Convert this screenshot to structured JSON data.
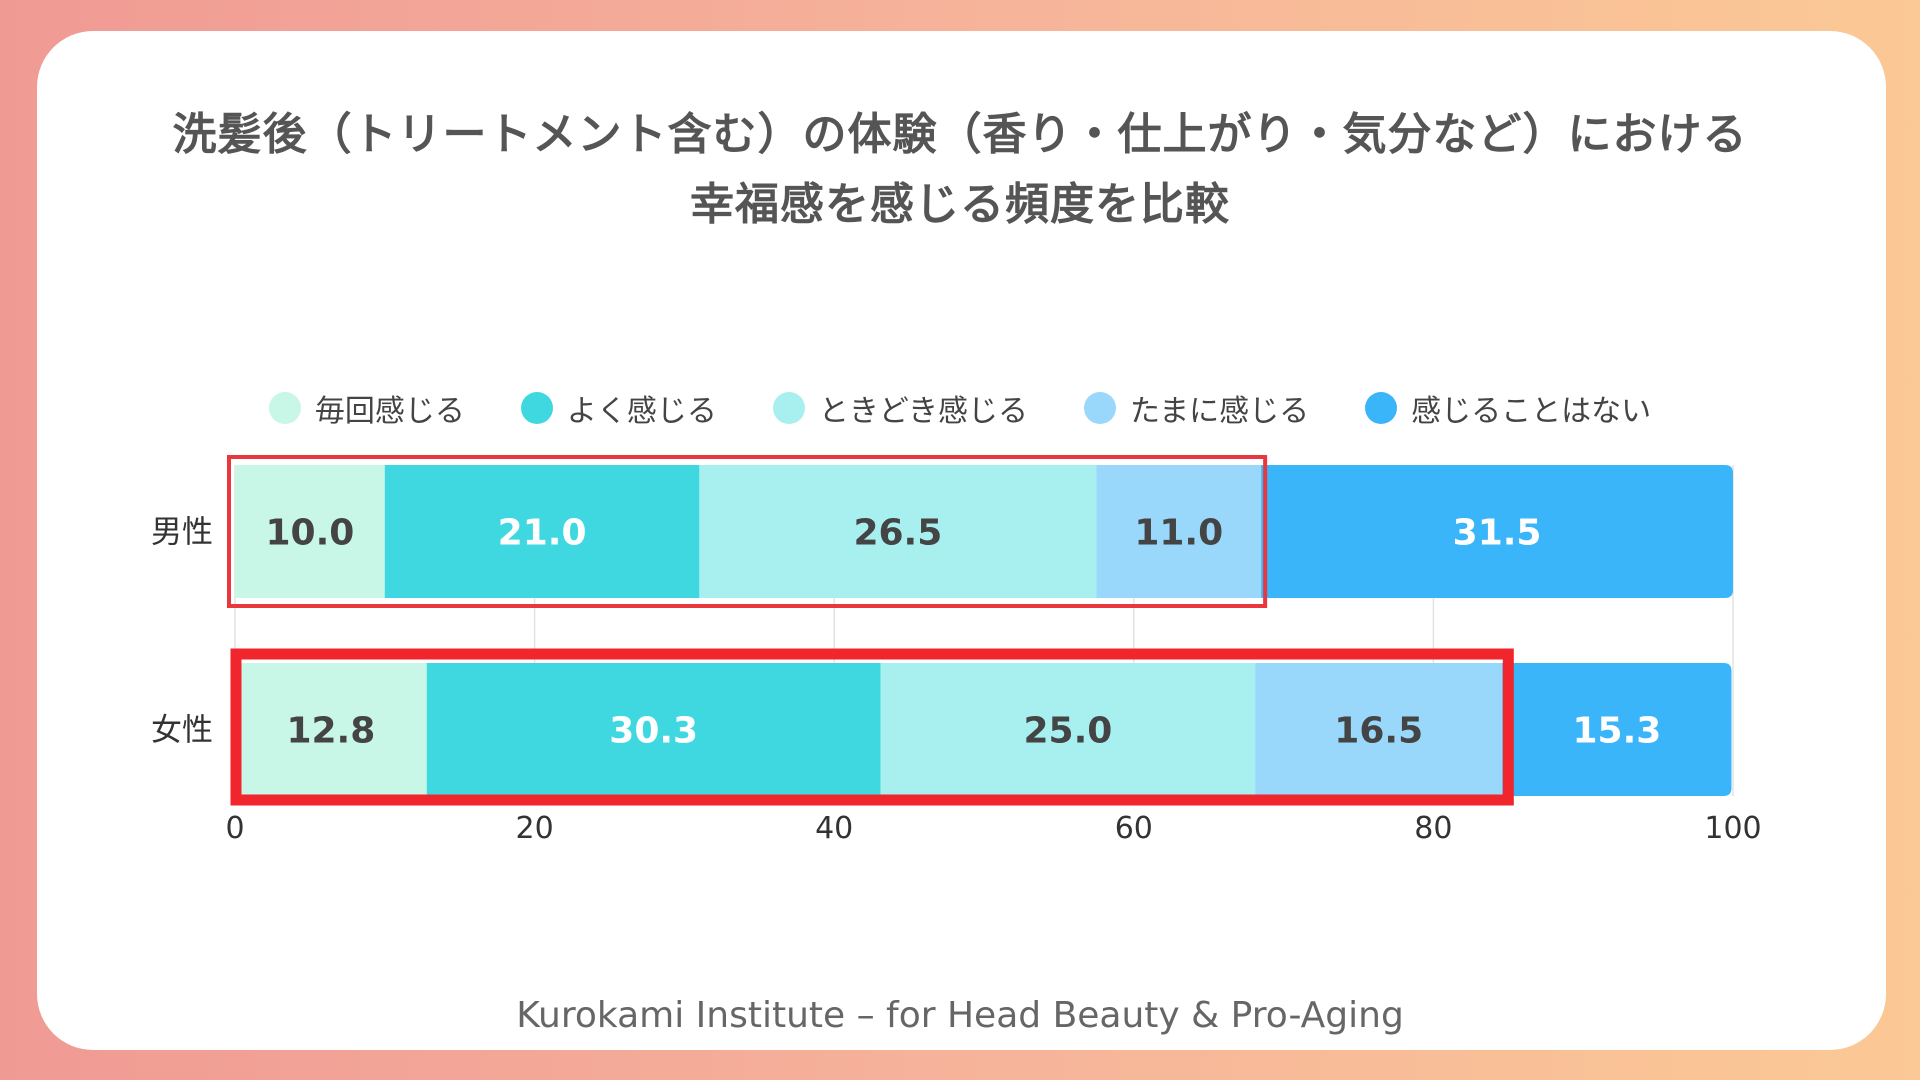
{
  "title": {
    "line1": "洗髪後（トリートメント含む）の体験（香り・仕上がり・気分など）における",
    "line2": "幸福感を感じる頻度を比較"
  },
  "footer": "Kurokami Institute – for Head Beauty & Pro-Aging",
  "chart_data": {
    "type": "bar",
    "orientation": "horizontal",
    "stacked": true,
    "categories": [
      "男性",
      "女性"
    ],
    "series": [
      {
        "name": "毎回感じる",
        "color": "#c8f6e7",
        "values": [
          10.0,
          12.8
        ],
        "labels": [
          "10.0",
          "12.8"
        ],
        "label_color": "#444444"
      },
      {
        "name": "よく感じる",
        "color": "#3fd8e0",
        "values": [
          21.0,
          30.3
        ],
        "labels": [
          "21.0",
          "30.3"
        ],
        "label_color": "#ffffff"
      },
      {
        "name": "ときどき感じる",
        "color": "#a8f0f0",
        "values": [
          26.5,
          25.0
        ],
        "labels": [
          "26.5",
          "25.0"
        ],
        "label_color": "#444444"
      },
      {
        "name": "たまに感じる",
        "color": "#99d8fb",
        "values": [
          11.0,
          16.5
        ],
        "labels": [
          "11.0",
          "16.5"
        ],
        "label_color": "#444444"
      },
      {
        "name": "感じることはない",
        "color": "#3ab5fa",
        "values": [
          31.5,
          15.3
        ],
        "labels": [
          "31.5",
          "15.3"
        ],
        "label_color": "#ffffff"
      }
    ],
    "xlim": [
      0,
      100
    ],
    "xticks": [
      "0",
      "20",
      "40",
      "60",
      "80",
      "100"
    ],
    "legend_position": "top",
    "grid": true,
    "highlights": [
      {
        "category": "男性",
        "through_value": 68.5,
        "color": "#e8383d"
      },
      {
        "category": "女性",
        "through_value": 84.6,
        "color": "#f0262c"
      }
    ]
  }
}
